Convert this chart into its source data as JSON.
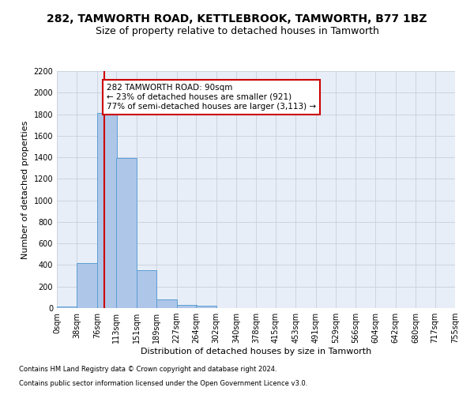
{
  "title": "282, TAMWORTH ROAD, KETTLEBROOK, TAMWORTH, B77 1BZ",
  "subtitle": "Size of property relative to detached houses in Tamworth",
  "xlabel": "Distribution of detached houses by size in Tamworth",
  "ylabel": "Number of detached properties",
  "bin_labels": [
    "0sqm",
    "38sqm",
    "76sqm",
    "113sqm",
    "151sqm",
    "189sqm",
    "227sqm",
    "264sqm",
    "302sqm",
    "340sqm",
    "378sqm",
    "415sqm",
    "453sqm",
    "491sqm",
    "529sqm",
    "566sqm",
    "604sqm",
    "642sqm",
    "680sqm",
    "717sqm",
    "755sqm"
  ],
  "bin_edges": [
    0,
    38,
    76,
    113,
    151,
    189,
    227,
    264,
    302,
    340,
    378,
    415,
    453,
    491,
    529,
    566,
    604,
    642,
    680,
    717,
    755
  ],
  "bar_heights": [
    15,
    420,
    1810,
    1395,
    350,
    80,
    30,
    20,
    0,
    0,
    0,
    0,
    0,
    0,
    0,
    0,
    0,
    0,
    0,
    0
  ],
  "bar_color": "#aec6e8",
  "bar_edge_color": "#5a9fd4",
  "property_size": 90,
  "property_line_color": "#cc0000",
  "annotation_line1": "282 TAMWORTH ROAD: 90sqm",
  "annotation_line2": "← 23% of detached houses are smaller (921)",
  "annotation_line3": "77% of semi-detached houses are larger (3,113) →",
  "annotation_box_color": "#ffffff",
  "annotation_box_edge": "#cc0000",
  "ylim": [
    0,
    2200
  ],
  "yticks": [
    0,
    200,
    400,
    600,
    800,
    1000,
    1200,
    1400,
    1600,
    1800,
    2000,
    2200
  ],
  "grid_color": "#c8d0dc",
  "bg_color": "#e8eef7",
  "footer_line1": "Contains HM Land Registry data © Crown copyright and database right 2024.",
  "footer_line2": "Contains public sector information licensed under the Open Government Licence v3.0.",
  "title_fontsize": 10,
  "subtitle_fontsize": 9,
  "axis_label_fontsize": 8,
  "tick_fontsize": 7,
  "annotation_fontsize": 7.5
}
